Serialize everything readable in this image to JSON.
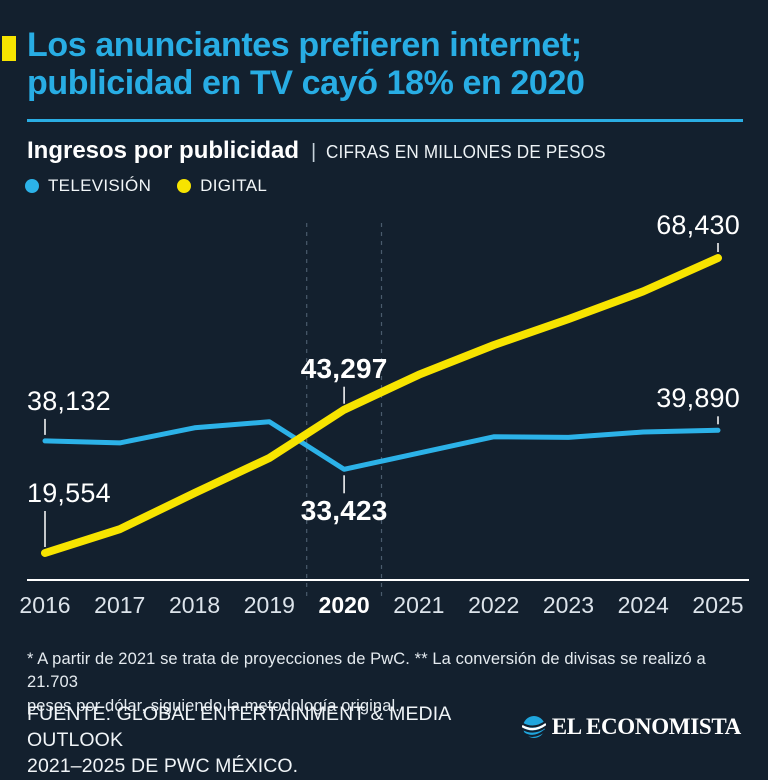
{
  "meta": {
    "background_color": "#13202e",
    "accent_color": "#f7e400",
    "title_color": "#28ade4"
  },
  "header": {
    "title_line1": "Los anunciantes prefieren internet;",
    "title_line2": "publicidad en TV cayó 18% en 2020"
  },
  "legend": [
    {
      "label": "TELEVISIÓN",
      "color": "#2cb2e8"
    },
    {
      "label": "DIGITAL",
      "color": "#f7e400"
    }
  ],
  "chart_data": {
    "type": "line",
    "title": "Ingresos por publicidad",
    "separator": "|",
    "units": "CIFRAS EN MILLONES DE PESOS",
    "categories": [
      "2016",
      "2017",
      "2018",
      "2019",
      "2020",
      "2021",
      "2022",
      "2023",
      "2024",
      "2025"
    ],
    "highlight_category": "2020",
    "ylim": [
      15000,
      72000
    ],
    "grid": "two faint vertical dashed guides bracketing 2020",
    "legend_position": "top-left",
    "series": [
      {
        "name": "TELEVISIÓN",
        "color": "#2cb2e8",
        "values": [
          38132,
          37800,
          40300,
          41300,
          33423,
          36100,
          38800,
          38700,
          39600,
          39890
        ]
      },
      {
        "name": "DIGITAL",
        "color": "#f7e400",
        "values": [
          19554,
          23500,
          29500,
          35300,
          43297,
          49100,
          54000,
          58300,
          62900,
          68430
        ]
      }
    ],
    "annotations": [
      {
        "series": "TELEVISIÓN",
        "category": "2016",
        "text": "38,132",
        "bold": false,
        "side": "above",
        "align": "left",
        "tick": 16
      },
      {
        "series": "DIGITAL",
        "category": "2016",
        "text": "19,554",
        "bold": false,
        "side": "above",
        "align": "left",
        "tick": 36
      },
      {
        "series": "DIGITAL",
        "category": "2020",
        "text": "43,297",
        "bold": true,
        "side": "above",
        "align": "center",
        "tick": 17
      },
      {
        "series": "TELEVISIÓN",
        "category": "2020",
        "text": "33,423",
        "bold": true,
        "side": "below",
        "align": "center",
        "tick": 18
      },
      {
        "series": "DIGITAL",
        "category": "2025",
        "text": "68,430",
        "bold": false,
        "side": "above",
        "align": "right",
        "tick": 9
      },
      {
        "series": "TELEVISIÓN",
        "category": "2025",
        "text": "39,890",
        "bold": false,
        "side": "above",
        "align": "right",
        "tick": 8
      }
    ]
  },
  "footnote": {
    "line1": "* A partir de 2021 se trata de proyecciones de PwC. ** La conversión de divisas se realizó a 21.703",
    "line2": "pesos por dólar, siguiendo la metodología original."
  },
  "source": {
    "line1": "FUENTE: GLOBAL ENTERTAINMENT & MEDIA OUTLOOK",
    "line2": "2021–2025 DE PWC MÉXICO."
  },
  "logo": {
    "name": "EL ECONOMISTA"
  }
}
